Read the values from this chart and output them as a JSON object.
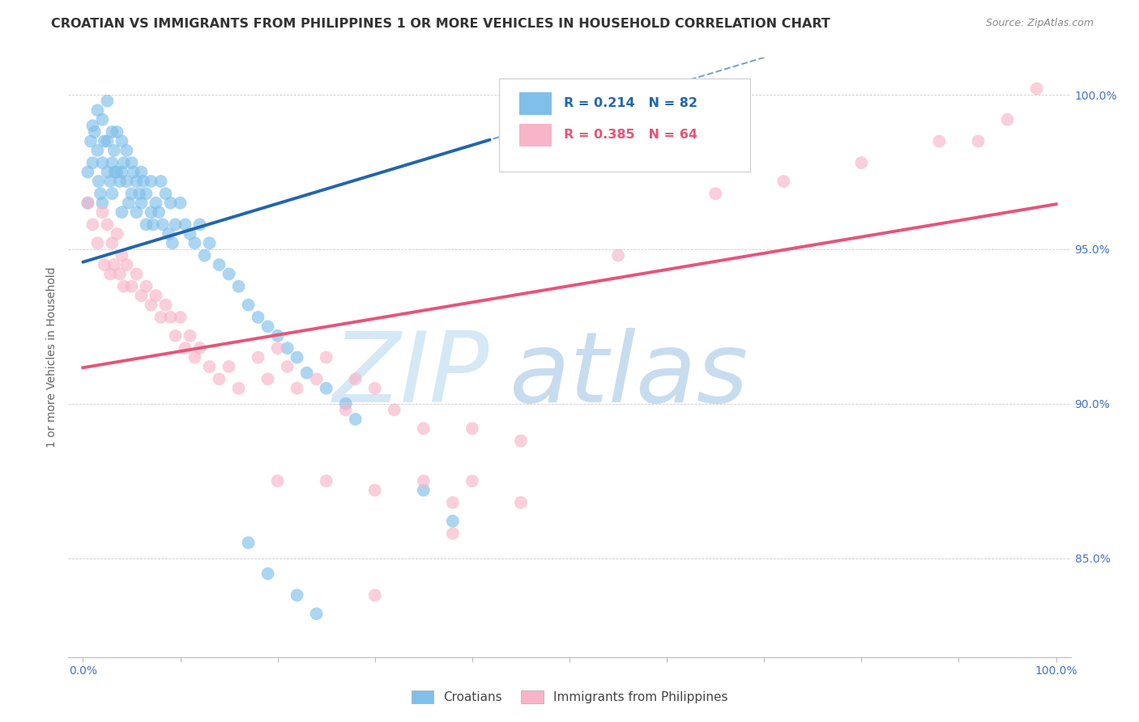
{
  "title": "CROATIAN VS IMMIGRANTS FROM PHILIPPINES 1 OR MORE VEHICLES IN HOUSEHOLD CORRELATION CHART",
  "source": "Source: ZipAtlas.com",
  "ylabel": "1 or more Vehicles in Household",
  "ytick_vals": [
    0.85,
    0.9,
    0.95,
    1.0
  ],
  "ytick_labels": [
    "85.0%",
    "90.0%",
    "95.0%",
    "100.0%"
  ],
  "xlim": [
    -0.015,
    1.015
  ],
  "ylim": [
    0.818,
    1.012
  ],
  "legend_blue": "R = 0.214   N = 82",
  "legend_pink": "R = 0.385   N = 64",
  "legend_bottom_blue": "Croatians",
  "legend_bottom_pink": "Immigrants from Philippines",
  "blue_color": "#7fbfea",
  "pink_color": "#f8b4c8",
  "blue_line_color": "#2166ac",
  "pink_line_color": "#e8537a",
  "watermark_zip": "ZIP",
  "watermark_atlas": "atlas",
  "watermark_color_zip": "#d0e8f8",
  "watermark_color_atlas": "#c8dff5",
  "background_color": "#ffffff",
  "grid_color": "#cccccc",
  "blue_x": [
    0.005,
    0.005,
    0.008,
    0.01,
    0.01,
    0.012,
    0.015,
    0.015,
    0.016,
    0.018,
    0.02,
    0.02,
    0.02,
    0.022,
    0.025,
    0.025,
    0.025,
    0.028,
    0.03,
    0.03,
    0.03,
    0.032,
    0.033,
    0.035,
    0.035,
    0.038,
    0.04,
    0.04,
    0.04,
    0.042,
    0.045,
    0.045,
    0.047,
    0.05,
    0.05,
    0.052,
    0.055,
    0.055,
    0.058,
    0.06,
    0.06,
    0.062,
    0.065,
    0.065,
    0.07,
    0.07,
    0.072,
    0.075,
    0.078,
    0.08,
    0.082,
    0.085,
    0.088,
    0.09,
    0.092,
    0.095,
    0.1,
    0.105,
    0.11,
    0.115,
    0.12,
    0.125,
    0.13,
    0.14,
    0.15,
    0.16,
    0.17,
    0.18,
    0.19,
    0.2,
    0.21,
    0.22,
    0.23,
    0.25,
    0.27,
    0.28,
    0.35,
    0.38,
    0.17,
    0.19,
    0.22,
    0.24
  ],
  "blue_y": [
    0.975,
    0.965,
    0.985,
    0.99,
    0.978,
    0.988,
    0.995,
    0.982,
    0.972,
    0.968,
    0.992,
    0.978,
    0.965,
    0.985,
    0.998,
    0.985,
    0.975,
    0.972,
    0.988,
    0.978,
    0.968,
    0.982,
    0.975,
    0.988,
    0.975,
    0.972,
    0.985,
    0.975,
    0.962,
    0.978,
    0.982,
    0.972,
    0.965,
    0.978,
    0.968,
    0.975,
    0.972,
    0.962,
    0.968,
    0.975,
    0.965,
    0.972,
    0.968,
    0.958,
    0.972,
    0.962,
    0.958,
    0.965,
    0.962,
    0.972,
    0.958,
    0.968,
    0.955,
    0.965,
    0.952,
    0.958,
    0.965,
    0.958,
    0.955,
    0.952,
    0.958,
    0.948,
    0.952,
    0.945,
    0.942,
    0.938,
    0.932,
    0.928,
    0.925,
    0.922,
    0.918,
    0.915,
    0.91,
    0.905,
    0.9,
    0.895,
    0.872,
    0.862,
    0.855,
    0.845,
    0.838,
    0.832
  ],
  "pink_x": [
    0.005,
    0.01,
    0.015,
    0.02,
    0.022,
    0.025,
    0.028,
    0.03,
    0.032,
    0.035,
    0.038,
    0.04,
    0.042,
    0.045,
    0.05,
    0.055,
    0.06,
    0.065,
    0.07,
    0.075,
    0.08,
    0.085,
    0.09,
    0.095,
    0.1,
    0.105,
    0.11,
    0.115,
    0.12,
    0.13,
    0.14,
    0.15,
    0.16,
    0.18,
    0.19,
    0.2,
    0.21,
    0.22,
    0.24,
    0.25,
    0.27,
    0.28,
    0.3,
    0.32,
    0.35,
    0.4,
    0.45,
    0.55,
    0.65,
    0.72,
    0.8,
    0.88,
    0.92,
    0.95,
    0.98,
    0.2,
    0.25,
    0.3,
    0.35,
    0.38,
    0.38,
    0.4,
    0.45,
    0.3
  ],
  "pink_y": [
    0.965,
    0.958,
    0.952,
    0.962,
    0.945,
    0.958,
    0.942,
    0.952,
    0.945,
    0.955,
    0.942,
    0.948,
    0.938,
    0.945,
    0.938,
    0.942,
    0.935,
    0.938,
    0.932,
    0.935,
    0.928,
    0.932,
    0.928,
    0.922,
    0.928,
    0.918,
    0.922,
    0.915,
    0.918,
    0.912,
    0.908,
    0.912,
    0.905,
    0.915,
    0.908,
    0.918,
    0.912,
    0.905,
    0.908,
    0.915,
    0.898,
    0.908,
    0.905,
    0.898,
    0.892,
    0.892,
    0.888,
    0.948,
    0.968,
    0.972,
    0.978,
    0.985,
    0.985,
    0.992,
    1.002,
    0.875,
    0.875,
    0.872,
    0.875,
    0.858,
    0.868,
    0.875,
    0.868,
    0.838
  ]
}
